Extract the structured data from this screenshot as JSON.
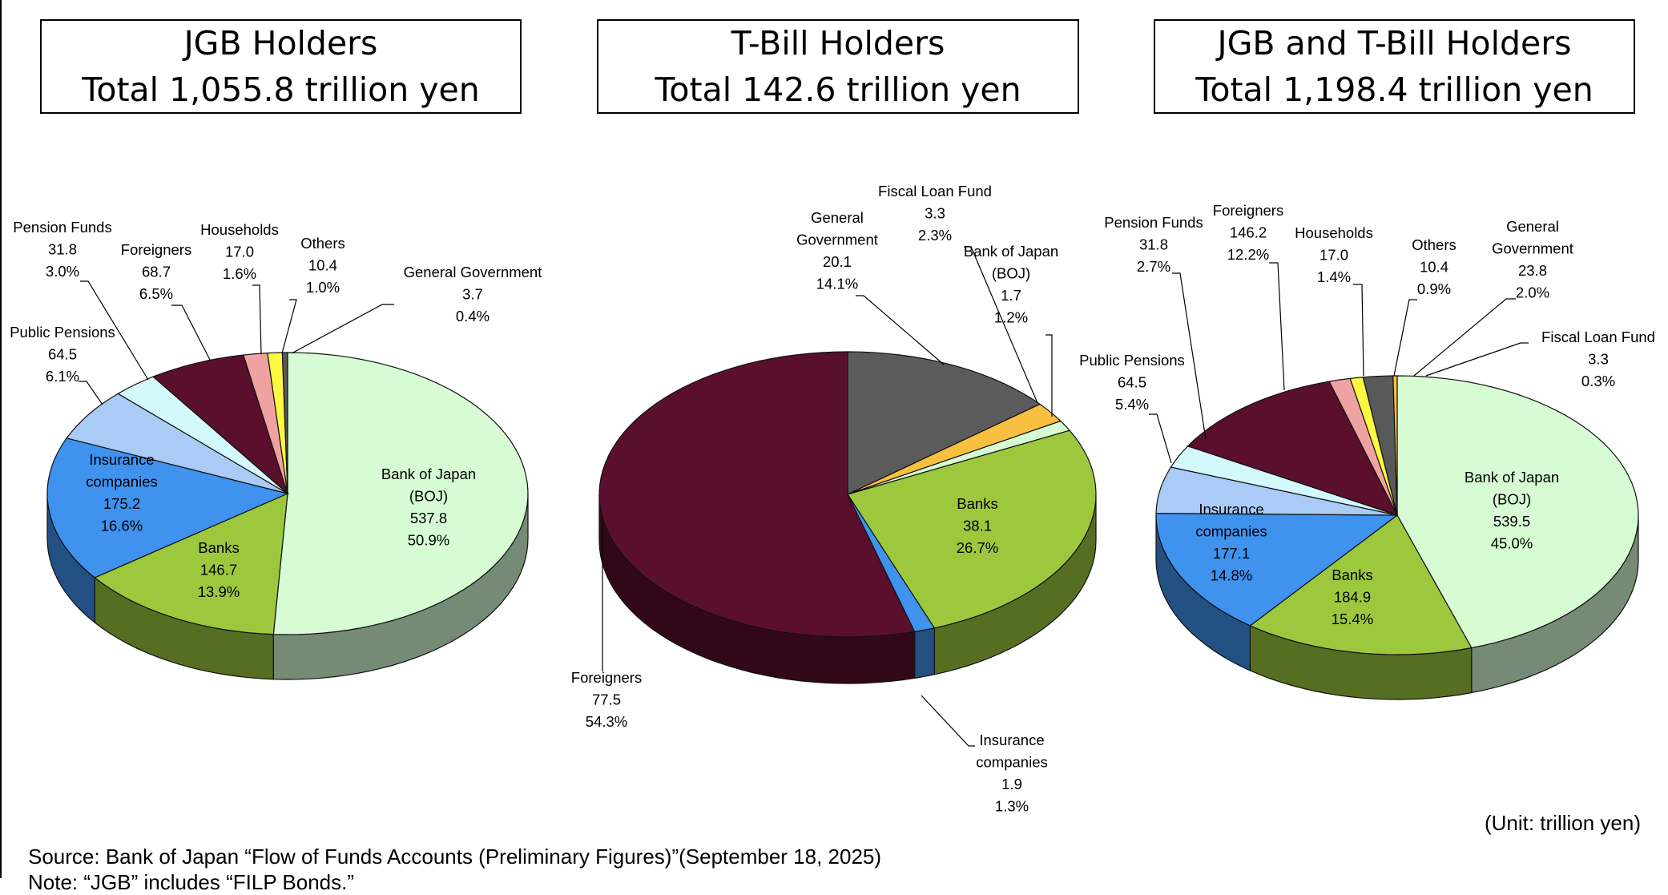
{
  "chart_data": [
    {
      "type": "pie",
      "title": "JGB Holders",
      "subtitle": "Total 1,055.8 trillion yen",
      "slices": [
        {
          "name": "Bank of Japan\n(BOJ)",
          "value": "537.8",
          "pct": "50.9%",
          "color": "#d7fcd4"
        },
        {
          "name": "Banks",
          "value": "146.7",
          "pct": "13.9%",
          "color": "#9dc83e"
        },
        {
          "name": "Insurance\ncompanies",
          "value": "175.2",
          "pct": "16.6%",
          "color": "#3f92ee"
        },
        {
          "name": "Public Pensions",
          "value": "64.5",
          "pct": "6.1%",
          "color": "#a9cbf6"
        },
        {
          "name": "Pension Funds",
          "value": "31.8",
          "pct": "3.0%",
          "color": "#d3f9fc"
        },
        {
          "name": "Foreigners",
          "value": "68.7",
          "pct": "6.5%",
          "color": "#5a0f2d"
        },
        {
          "name": "Households",
          "value": "17.0",
          "pct": "1.6%",
          "color": "#f0a2a2"
        },
        {
          "name": "Others",
          "value": "10.4",
          "pct": "1.0%",
          "color": "#fcfa40"
        },
        {
          "name": "General Government",
          "value": "3.7",
          "pct": "0.4%",
          "color": "#595959"
        }
      ]
    },
    {
      "type": "pie",
      "title": "T-Bill Holders",
      "subtitle": "Total 142.6 trillion yen",
      "slices": [
        {
          "name": "General\nGovernment",
          "value": "20.1",
          "pct": "14.1%",
          "color": "#5b5b5b"
        },
        {
          "name": "Fiscal Loan Fund",
          "value": "3.3",
          "pct": "2.3%",
          "color": "#f7c040"
        },
        {
          "name": "Bank of Japan\n(BOJ)",
          "value": "1.7",
          "pct": "1.2%",
          "color": "#d7fcd4"
        },
        {
          "name": "Banks",
          "value": "38.1",
          "pct": "26.7%",
          "color": "#9dc83e"
        },
        {
          "name": "Insurance\ncompanies",
          "value": "1.9",
          "pct": "1.3%",
          "color": "#3f92ee"
        },
        {
          "name": "Foreigners",
          "value": "77.5",
          "pct": "54.3%",
          "color": "#5a0f2d"
        }
      ]
    },
    {
      "type": "pie",
      "title": "JGB and T-Bill Holders",
      "subtitle": "Total 1,198.4 trillion yen",
      "slices": [
        {
          "name": "Bank of Japan\n(BOJ)",
          "value": "539.5",
          "pct": "45.0%",
          "color": "#d7fcd4"
        },
        {
          "name": "Banks",
          "value": "184.9",
          "pct": "15.4%",
          "color": "#9dc83e"
        },
        {
          "name": "Insurance\ncompanies",
          "value": "177.1",
          "pct": "14.8%",
          "color": "#3f92ee"
        },
        {
          "name": "Public Pensions",
          "value": "64.5",
          "pct": "5.4%",
          "color": "#a9cbf6"
        },
        {
          "name": "Pension Funds",
          "value": "31.8",
          "pct": "2.7%",
          "color": "#d3f9fc"
        },
        {
          "name": "Foreigners",
          "value": "146.2",
          "pct": "12.2%",
          "color": "#5a0f2d"
        },
        {
          "name": "Households",
          "value": "17.0",
          "pct": "1.4%",
          "color": "#f0a2a2"
        },
        {
          "name": "Others",
          "value": "10.4",
          "pct": "0.9%",
          "color": "#fcfa40"
        },
        {
          "name": "General\nGovernment",
          "value": "23.8",
          "pct": "2.0%",
          "color": "#595959"
        },
        {
          "name": "Fiscal Loan Fund",
          "value": "3.3",
          "pct": "0.3%",
          "color": "#f7c040"
        }
      ]
    }
  ],
  "unit": "(Unit: trillion yen)",
  "source": "Source: Bank of Japan “Flow of Funds Accounts (Preliminary Figures)”(September 18, 2025)",
  "note": "Note: “JGB” includes “FILP Bonds.”"
}
